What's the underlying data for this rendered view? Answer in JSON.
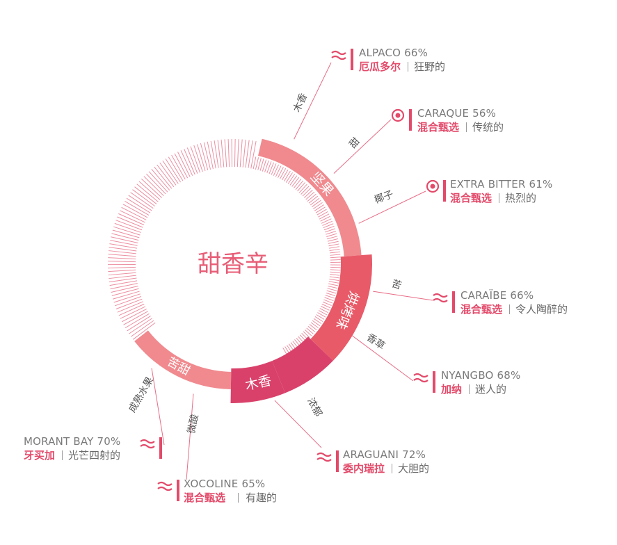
{
  "center_title": "甜香辛",
  "colors": {
    "accent": "#e34a6a",
    "ring_light": "#f08a8f",
    "ring_mid": "#e95a68",
    "ring_dark": "#d9416a",
    "hatch": "#ec8fa1",
    "text_gray": "#7a7a7a"
  },
  "segments": [
    {
      "label": "坚果"
    },
    {
      "label": "烘烤味"
    },
    {
      "label": "木香"
    },
    {
      "label": "苦甜"
    }
  ],
  "leaves": [
    {
      "label": "木香"
    },
    {
      "label": "甜"
    },
    {
      "label": "椰子"
    },
    {
      "label": "苦"
    },
    {
      "label": "香草"
    },
    {
      "label": "浓郁"
    },
    {
      "label": "微酸"
    },
    {
      "label": "成熟水果"
    }
  ],
  "items": [
    {
      "name": "ALPACO 66%",
      "origin": "厄瓜多尔",
      "desc": "狂野的",
      "icon": "wave-icon"
    },
    {
      "name": "CARAQUE 56%",
      "origin": "混合甄选",
      "desc": "传统的",
      "icon": "target-icon"
    },
    {
      "name": "EXTRA BITTER 61%",
      "origin": "混合甄选",
      "desc": "热烈的",
      "icon": "target-icon"
    },
    {
      "name": "CARAÏBE 66%",
      "origin": "混合甄选",
      "desc": "令人陶醉的",
      "icon": "wave-icon"
    },
    {
      "name": "NYANGBO 68%",
      "origin": "加纳",
      "desc": "迷人的",
      "icon": "wave-icon"
    },
    {
      "name": "ARAGUANI 72%",
      "origin": "委内瑞拉",
      "desc": "大胆的",
      "icon": "wave-icon"
    },
    {
      "name": "XOCOLINE 65%",
      "origin": "混合甄选",
      "desc": "有趣的",
      "icon": "wave-icon"
    },
    {
      "name": "MORANT BAY 70%",
      "origin": "牙买加",
      "desc": "光芒四射的",
      "icon": "wave-icon"
    }
  ]
}
